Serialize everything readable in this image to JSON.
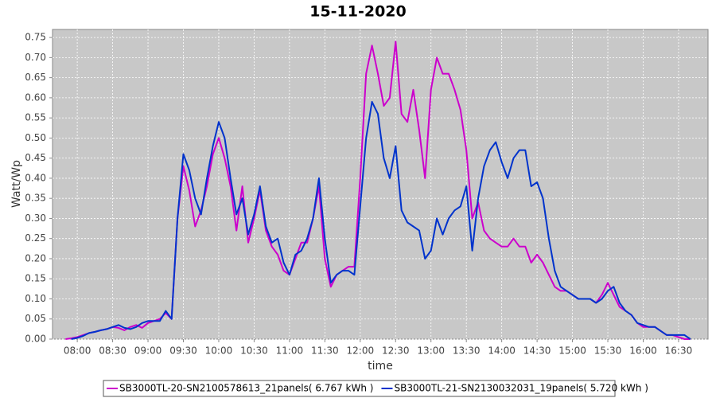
{
  "chart_data": {
    "type": "line",
    "title": "15-11-2020",
    "x_label": "time",
    "y_label": "Watt/Wp",
    "x": [
      "07:50",
      "07:55",
      "08:00",
      "08:05",
      "08:10",
      "08:15",
      "08:20",
      "08:25",
      "08:30",
      "08:35",
      "08:40",
      "08:45",
      "08:50",
      "08:55",
      "09:00",
      "09:05",
      "09:10",
      "09:15",
      "09:20",
      "09:25",
      "09:30",
      "09:35",
      "09:40",
      "09:45",
      "09:50",
      "09:55",
      "10:00",
      "10:05",
      "10:10",
      "10:15",
      "10:20",
      "10:25",
      "10:30",
      "10:35",
      "10:40",
      "10:45",
      "10:50",
      "10:55",
      "11:00",
      "11:05",
      "11:10",
      "11:15",
      "11:20",
      "11:25",
      "11:30",
      "11:35",
      "11:40",
      "11:45",
      "11:50",
      "11:55",
      "12:00",
      "12:05",
      "12:10",
      "12:15",
      "12:20",
      "12:25",
      "12:30",
      "12:35",
      "12:40",
      "12:45",
      "12:50",
      "12:55",
      "13:00",
      "13:05",
      "13:10",
      "13:15",
      "13:20",
      "13:25",
      "13:30",
      "13:35",
      "13:40",
      "13:45",
      "13:50",
      "13:55",
      "14:00",
      "14:05",
      "14:10",
      "14:15",
      "14:20",
      "14:25",
      "14:30",
      "14:35",
      "14:40",
      "14:45",
      "14:50",
      "14:55",
      "15:00",
      "15:05",
      "15:10",
      "15:15",
      "15:20",
      "15:25",
      "15:30",
      "15:35",
      "15:40",
      "15:45",
      "15:50",
      "15:55",
      "16:00",
      "16:05",
      "16:10",
      "16:15",
      "16:20",
      "16:25",
      "16:30",
      "16:35",
      "16:40"
    ],
    "series": [
      {
        "name": "SB3000TL-20-SN2100578613_21panels( 6.767 kWh )",
        "color": "#cc00cc",
        "values": [
          0,
          0.002,
          0.005,
          0.01,
          0.015,
          0.018,
          0.022,
          0.025,
          0.03,
          0.028,
          0.022,
          0.03,
          0.035,
          0.028,
          0.04,
          0.045,
          0.05,
          0.065,
          0.05,
          0.3,
          0.43,
          0.37,
          0.28,
          0.32,
          0.38,
          0.46,
          0.5,
          0.45,
          0.38,
          0.27,
          0.38,
          0.24,
          0.3,
          0.37,
          0.27,
          0.23,
          0.21,
          0.17,
          0.16,
          0.2,
          0.24,
          0.24,
          0.3,
          0.38,
          0.2,
          0.13,
          0.16,
          0.17,
          0.18,
          0.18,
          0.4,
          0.66,
          0.73,
          0.66,
          0.58,
          0.6,
          0.74,
          0.56,
          0.54,
          0.62,
          0.52,
          0.4,
          0.62,
          0.7,
          0.66,
          0.66,
          0.62,
          0.57,
          0.47,
          0.3,
          0.34,
          0.27,
          0.25,
          0.24,
          0.23,
          0.23,
          0.25,
          0.23,
          0.23,
          0.19,
          0.21,
          0.19,
          0.16,
          0.13,
          0.12,
          0.12,
          0.11,
          0.1,
          0.1,
          0.1,
          0.09,
          0.11,
          0.14,
          0.11,
          0.08,
          0.07,
          0.06,
          0.04,
          0.03,
          0.03,
          0.03,
          0.02,
          0.01,
          0.01,
          0.005,
          0,
          0
        ]
      },
      {
        "name": "SB3000TL-21-SN2130032031_19panels( 5.720 kWh )",
        "color": "#0033cc",
        "values": [
          null,
          0,
          0.003,
          0.008,
          0.015,
          0.018,
          0.022,
          0.025,
          0.03,
          0.035,
          0.028,
          0.025,
          0.03,
          0.04,
          0.045,
          0.045,
          0.045,
          0.07,
          0.05,
          0.3,
          0.46,
          0.42,
          0.35,
          0.31,
          0.4,
          0.48,
          0.54,
          0.5,
          0.4,
          0.31,
          0.35,
          0.26,
          0.31,
          0.38,
          0.28,
          0.24,
          0.25,
          0.19,
          0.16,
          0.21,
          0.22,
          0.25,
          0.3,
          0.4,
          0.25,
          0.14,
          0.16,
          0.17,
          0.17,
          0.16,
          0.33,
          0.5,
          0.59,
          0.56,
          0.45,
          0.4,
          0.48,
          0.32,
          0.29,
          0.28,
          0.27,
          0.2,
          0.22,
          0.3,
          0.26,
          0.3,
          0.32,
          0.33,
          0.38,
          0.22,
          0.35,
          0.43,
          0.47,
          0.49,
          0.44,
          0.4,
          0.45,
          0.47,
          0.47,
          0.38,
          0.39,
          0.35,
          0.25,
          0.17,
          0.13,
          0.12,
          0.11,
          0.1,
          0.1,
          0.1,
          0.09,
          0.1,
          0.12,
          0.13,
          0.09,
          0.07,
          0.06,
          0.04,
          0.035,
          0.03,
          0.03,
          0.02,
          0.01,
          0.01,
          0.01,
          0.01,
          0
        ]
      }
    ],
    "xlim": [
      "07:39",
      "16:55"
    ],
    "xticks": [
      "08:00",
      "08:30",
      "09:00",
      "09:30",
      "10:00",
      "10:30",
      "11:00",
      "11:30",
      "12:00",
      "12:30",
      "13:00",
      "13:30",
      "14:00",
      "14:30",
      "15:00",
      "15:30",
      "16:00",
      "16:30"
    ],
    "ylim": [
      0,
      0.77
    ],
    "yticks": [
      {
        "value": 0,
        "label": "0.00"
      },
      0.05,
      {
        "value": 0.1,
        "label": "0.10"
      },
      0.15,
      {
        "value": 0.2,
        "label": "0.20"
      },
      0.25,
      {
        "value": 0.3,
        "label": "0.30"
      },
      0.35,
      {
        "value": 0.4,
        "label": "0.40"
      },
      0.45,
      {
        "value": 0.5,
        "label": "0.50"
      },
      0.55,
      {
        "value": 0.6,
        "label": "0.60"
      },
      0.65,
      {
        "value": 0.7,
        "label": "0.70"
      },
      0.75
    ],
    "grid": true
  }
}
